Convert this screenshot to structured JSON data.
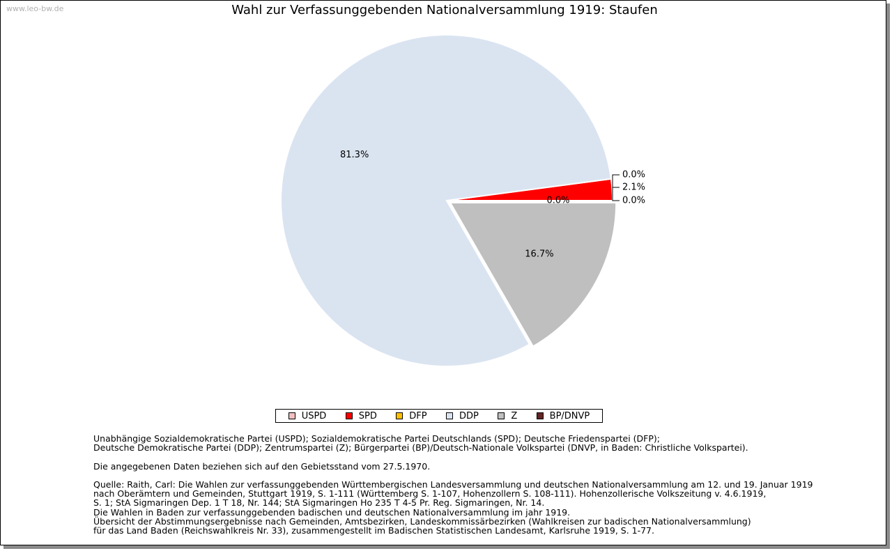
{
  "watermark": "www.leo-bw.de",
  "chart_data": {
    "type": "pie",
    "title": "Wahl zur Verfassunggebenden Nationalversammlung 1919: Staufen",
    "slices": [
      {
        "name": "USPD",
        "value": 0.0,
        "label": "0.0%",
        "color": "#f0c0c0"
      },
      {
        "name": "SPD",
        "value": 2.1,
        "label": "2.1%",
        "color": "#ff0000"
      },
      {
        "name": "DFP",
        "value": 0.0,
        "label": "0.0%",
        "color": "#ffc000"
      },
      {
        "name": "DDP",
        "value": 81.3,
        "label": "81.3%",
        "color": "#dae4f1"
      },
      {
        "name": "Z",
        "value": 16.7,
        "label": "16.7%",
        "color": "#bfbfbf"
      },
      {
        "name": "BP/DNVP",
        "value": 0.0,
        "label": "0.0%",
        "color": "#632523"
      }
    ],
    "legend_position": "bottom"
  },
  "notes": {
    "parties": [
      "Unabhängige Sozialdemokratische Partei (USPD); Sozialdemokratische Partei Deutschlands (SPD); Deutsche Friedenspartei (DFP);",
      "Deutsche Demokratische Partei (DDP); Zentrumspartei (Z); Bürgerpartei (BP)/Deutsch-Nationale Volkspartei (DNVP, in Baden: Christliche Volkspartei)."
    ],
    "stand": "Die angegebenen Daten beziehen sich auf den Gebietsstand vom 27.5.1970.",
    "source": [
      "Quelle: Raith, Carl: Die Wahlen zur verfassunggebenden Württembergischen Landesversammlung und deutschen Nationalversammlung am 12. und 19. Januar 1919",
      "nach Oberämtern und Gemeinden, Stuttgart 1919, S. 1-111 (Württemberg S. 1-107, Hohenzollern S. 108-111). Hohenzollerische Volkszeitung v. 4.6.1919,",
      "S. 1; StA Sigmaringen Dep. 1 T 18, Nr. 144; StA Sigmaringen Ho 235 T 4-5 Pr. Reg. Sigmaringen, Nr. 14.",
      "Die Wahlen in Baden zur verfassunggebenden badischen und deutschen Nationalversammlung im jahr 1919.",
      "Übersicht der Abstimmungsergebnisse nach Gemeinden, Amtsbezirken, Landeskommissärbezirken (Wahlkreisen zur badischen Nationalversammlung)",
      "für das Land Baden (Reichswahlkreis Nr. 33), zusammengestellt im Badischen Statistischen Landesamt, Karlsruhe 1919, S. 1-77."
    ]
  }
}
